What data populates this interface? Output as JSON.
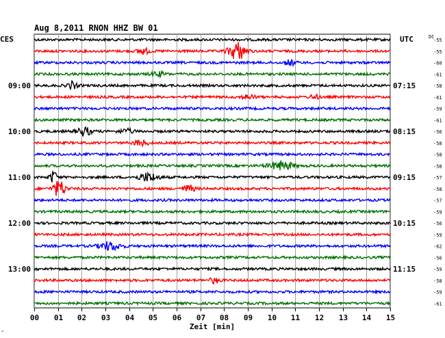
{
  "chart_data": {
    "type": "line",
    "title": "Aug 8,2011   RNON HHZ BW 01",
    "xlabel": "Zeit [min]",
    "left_axis_label": "CES",
    "right_axis_label": "UTC",
    "dc_header": "DC",
    "footer_mark": "^",
    "xlim": [
      0,
      15
    ],
    "x_ticks": [
      "00",
      "01",
      "02",
      "03",
      "04",
      "05",
      "06",
      "07",
      "08",
      "09",
      "10",
      "11",
      "12",
      "13",
      "14",
      "15"
    ],
    "left_time_labels": [
      {
        "row": 4,
        "text": "09:00"
      },
      {
        "row": 8,
        "text": "10:00"
      },
      {
        "row": 12,
        "text": "11:00"
      },
      {
        "row": 16,
        "text": "12:00"
      },
      {
        "row": 20,
        "text": "13:00"
      }
    ],
    "right_time_labels": [
      {
        "row": 4,
        "text": "07:15"
      },
      {
        "row": 8,
        "text": "08:15"
      },
      {
        "row": 12,
        "text": "09:15"
      },
      {
        "row": 16,
        "text": "10:15"
      },
      {
        "row": 20,
        "text": "11:15"
      }
    ],
    "dc_offsets": [
      -55,
      -55,
      -60,
      -61,
      -58,
      -61,
      -59,
      -61,
      -56,
      -58,
      -58,
      -58,
      -57,
      -58,
      -57,
      -59,
      -56,
      -59,
      -62,
      -56,
      -59,
      -58,
      -59,
      -61
    ],
    "trace_colors": [
      "#000000",
      "#ff0000",
      "#0000ff",
      "#007000"
    ],
    "row_count": 24,
    "events": [
      {
        "row": 1,
        "minute": 8.55,
        "amplitude": 13,
        "width": 0.35
      },
      {
        "row": 1,
        "minute": 4.6,
        "amplitude": 4,
        "width": 0.25
      },
      {
        "row": 2,
        "minute": 10.8,
        "amplitude": 4,
        "width": 0.2
      },
      {
        "row": 3,
        "minute": 5.2,
        "amplitude": 3,
        "width": 0.3
      },
      {
        "row": 4,
        "minute": 1.6,
        "amplitude": 5,
        "width": 0.2
      },
      {
        "row": 5,
        "minute": 9.0,
        "amplitude": 3,
        "width": 0.3
      },
      {
        "row": 5,
        "minute": 11.8,
        "amplitude": 3,
        "width": 0.2
      },
      {
        "row": 8,
        "minute": 2.1,
        "amplitude": 6,
        "width": 0.3
      },
      {
        "row": 8,
        "minute": 3.9,
        "amplitude": 3,
        "width": 0.3
      },
      {
        "row": 9,
        "minute": 4.5,
        "amplitude": 4,
        "width": 0.3
      },
      {
        "row": 11,
        "minute": 10.4,
        "amplitude": 6,
        "width": 0.5
      },
      {
        "row": 12,
        "minute": 0.8,
        "amplitude": 9,
        "width": 0.15
      },
      {
        "row": 12,
        "minute": 4.8,
        "amplitude": 6,
        "width": 0.4
      },
      {
        "row": 13,
        "minute": 1.05,
        "amplitude": 12,
        "width": 0.25
      },
      {
        "row": 13,
        "minute": 6.5,
        "amplitude": 5,
        "width": 0.25
      },
      {
        "row": 18,
        "minute": 3.2,
        "amplitude": 6,
        "width": 0.45
      },
      {
        "row": 21,
        "minute": 7.6,
        "amplitude": 4,
        "width": 0.2
      }
    ]
  }
}
